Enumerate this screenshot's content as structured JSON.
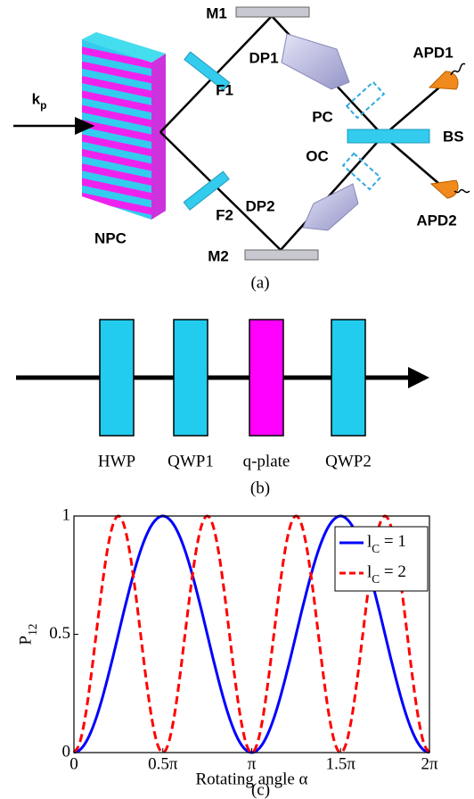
{
  "panel_a": {
    "caption": "(a)",
    "npc": "NPC",
    "kp": "kp",
    "m1": "M1",
    "m2": "M2",
    "f1": "F1",
    "f2": "F2",
    "dp1": "DP1",
    "dp2": "DP2",
    "pc": "PC",
    "oc": "OC",
    "bs": "BS",
    "apd1": "APD1",
    "apd2": "APD2"
  },
  "panel_b": {
    "caption": "(b)",
    "elements": [
      "HWP",
      "QWP1",
      "q-plate",
      "QWP2"
    ]
  },
  "chart_data": {
    "type": "line",
    "caption": "(c)",
    "x_label": "Rotating angle α",
    "y_label": "P12",
    "x": [
      0,
      0.03125,
      0.0625,
      0.09375,
      0.125,
      0.15625,
      0.1875,
      0.21875,
      0.25,
      0.28125,
      0.3125,
      0.34375,
      0.375,
      0.40625,
      0.4375,
      0.46875,
      0.5,
      0.53125,
      0.5625,
      0.59375,
      0.625,
      0.65625,
      0.6875,
      0.71875,
      0.75,
      0.78125,
      0.8125,
      0.84375,
      0.875,
      0.90625,
      0.9375,
      0.96875,
      1,
      1.03125,
      1.0625,
      1.09375,
      1.125,
      1.15625,
      1.1875,
      1.21875,
      1.25,
      1.28125,
      1.3125,
      1.34375,
      1.375,
      1.40625,
      1.4375,
      1.46875,
      1.5,
      1.53125,
      1.5625,
      1.59375,
      1.625,
      1.65625,
      1.6875,
      1.71875,
      1.75,
      1.78125,
      1.8125,
      1.84375,
      1.875,
      1.90625,
      1.9375,
      1.96875,
      2
    ],
    "series": [
      {
        "name": "lC = 1",
        "color": "#0000ff",
        "linestyle": "solid",
        "values": [
          0,
          0.01,
          0.038,
          0.084,
          0.146,
          0.222,
          0.309,
          0.402,
          0.5,
          0.598,
          0.691,
          0.778,
          0.854,
          0.916,
          0.962,
          0.99,
          1,
          0.99,
          0.962,
          0.916,
          0.854,
          0.778,
          0.691,
          0.598,
          0.5,
          0.402,
          0.309,
          0.222,
          0.146,
          0.084,
          0.038,
          0.01,
          0,
          0.01,
          0.038,
          0.084,
          0.146,
          0.222,
          0.309,
          0.402,
          0.5,
          0.598,
          0.691,
          0.778,
          0.854,
          0.916,
          0.962,
          0.99,
          1,
          0.99,
          0.962,
          0.916,
          0.854,
          0.778,
          0.691,
          0.598,
          0.5,
          0.402,
          0.309,
          0.222,
          0.146,
          0.084,
          0.038,
          0.01,
          0
        ]
      },
      {
        "name": "lC = 2",
        "color": "#ff0000",
        "linestyle": "dashed",
        "values": [
          0,
          0.038,
          0.146,
          0.309,
          0.5,
          0.691,
          0.854,
          0.962,
          1,
          0.962,
          0.854,
          0.691,
          0.5,
          0.309,
          0.146,
          0.038,
          0,
          0.038,
          0.146,
          0.309,
          0.5,
          0.691,
          0.854,
          0.962,
          1,
          0.962,
          0.854,
          0.691,
          0.5,
          0.309,
          0.146,
          0.038,
          0,
          0.038,
          0.146,
          0.309,
          0.5,
          0.691,
          0.854,
          0.962,
          1,
          0.962,
          0.854,
          0.691,
          0.5,
          0.309,
          0.146,
          0.038,
          0,
          0.038,
          0.146,
          0.309,
          0.5,
          0.691,
          0.854,
          0.962,
          1,
          0.962,
          0.854,
          0.691,
          0.5,
          0.309,
          0.146,
          0.038,
          0
        ]
      }
    ],
    "xlim": [
      0,
      2
    ],
    "ylim": [
      0,
      1
    ],
    "xticks": [
      0,
      {
        "value": 0.5,
        "label": "0.5π"
      },
      {
        "value": 1,
        "label": "π"
      },
      {
        "value": 1.5,
        "label": "1.5π"
      },
      {
        "value": 2,
        "label": "2π"
      }
    ],
    "yticks": [
      0,
      0.5,
      1
    ],
    "grid": false,
    "legend": "upper right"
  }
}
